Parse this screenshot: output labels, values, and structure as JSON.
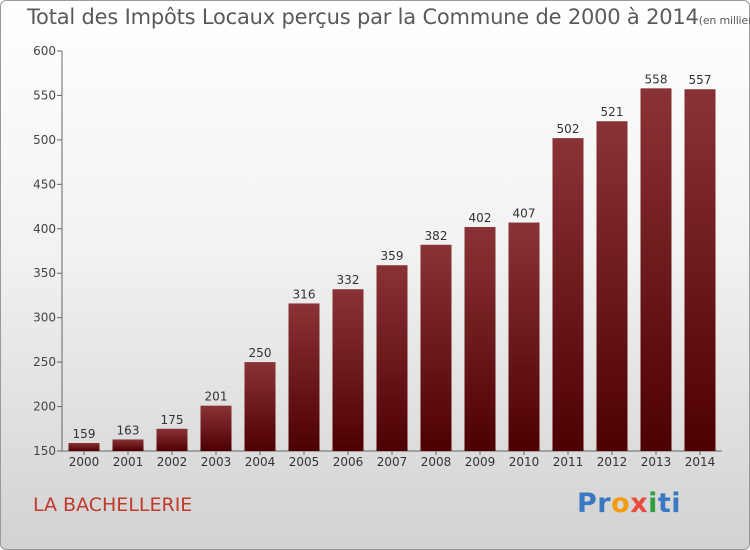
{
  "header": {
    "title": "Total des Impôts Locaux perçus par la Commune de 2000 à 2014",
    "unit": "(en milliers d'€)"
  },
  "footer": {
    "commune": "LA BACHELLERIE",
    "logo": "Proxiti"
  },
  "colors": {
    "bar_top": "#8a3336",
    "bar_bottom": "#4e0000",
    "commune": "#c0392b",
    "logo_letters": [
      "#3a78c3",
      "#3a78c3",
      "#f39c12",
      "#e74c3c",
      "#2e9e3e",
      "#3a78c3",
      "#3a78c3"
    ]
  },
  "chart_data": {
    "type": "bar",
    "title": "Total des Impôts Locaux perçus par la Commune de 2000 à 2014",
    "categories": [
      "2000",
      "2001",
      "2002",
      "2003",
      "2004",
      "2005",
      "2006",
      "2007",
      "2008",
      "2009",
      "2010",
      "2011",
      "2012",
      "2013",
      "2014"
    ],
    "values": [
      159,
      163,
      175,
      201,
      250,
      316,
      332,
      359,
      382,
      402,
      407,
      502,
      521,
      558,
      557
    ],
    "xlabel": "",
    "ylabel": "(en milliers d'€)",
    "ylim": [
      150,
      600
    ],
    "yticks": [
      150,
      200,
      250,
      300,
      350,
      400,
      450,
      500,
      550,
      600
    ],
    "grid": false
  }
}
